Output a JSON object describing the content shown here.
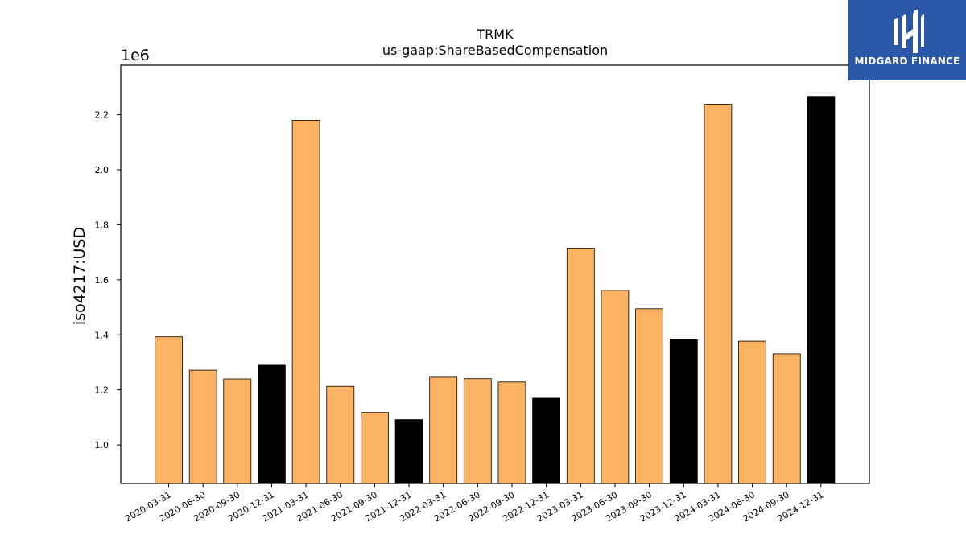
{
  "chart_data": {
    "type": "bar",
    "title": "TRMK",
    "subtitle": "us-gaap:ShareBasedCompensation",
    "ylabel": "iso4217:USD",
    "xlabel": "",
    "y_multiplier": "1e6",
    "ylim": [
      0.86,
      2.38
    ],
    "yticks": [
      "1.0",
      "1.2",
      "1.4",
      "1.6",
      "1.8",
      "2.0",
      "2.2"
    ],
    "ytick_values": [
      1.0,
      1.2,
      1.4,
      1.6,
      1.8,
      2.0,
      2.2
    ],
    "categories": [
      "2020-03-31",
      "2020-06-30",
      "2020-09-30",
      "2020-12-31",
      "2021-03-31",
      "2021-06-30",
      "2021-09-30",
      "2021-12-31",
      "2022-03-31",
      "2022-06-30",
      "2022-09-30",
      "2022-12-31",
      "2023-03-31",
      "2023-06-30",
      "2023-09-30",
      "2023-12-31",
      "2024-03-31",
      "2024-06-30",
      "2024-09-30",
      "2024-12-31"
    ],
    "values": [
      1.393,
      1.272,
      1.24,
      1.29,
      2.18,
      1.213,
      1.118,
      1.092,
      1.246,
      1.241,
      1.229,
      1.17,
      1.715,
      1.562,
      1.495,
      1.383,
      2.238,
      1.377,
      1.331,
      2.267
    ],
    "colors": {
      "quarter": "#fbb263",
      "year_end": "#000000",
      "edge": "#000000"
    },
    "grid": false,
    "legend": "none"
  },
  "logo": {
    "name": "MIDGARD FINANCE",
    "background": "#2a57a8"
  }
}
